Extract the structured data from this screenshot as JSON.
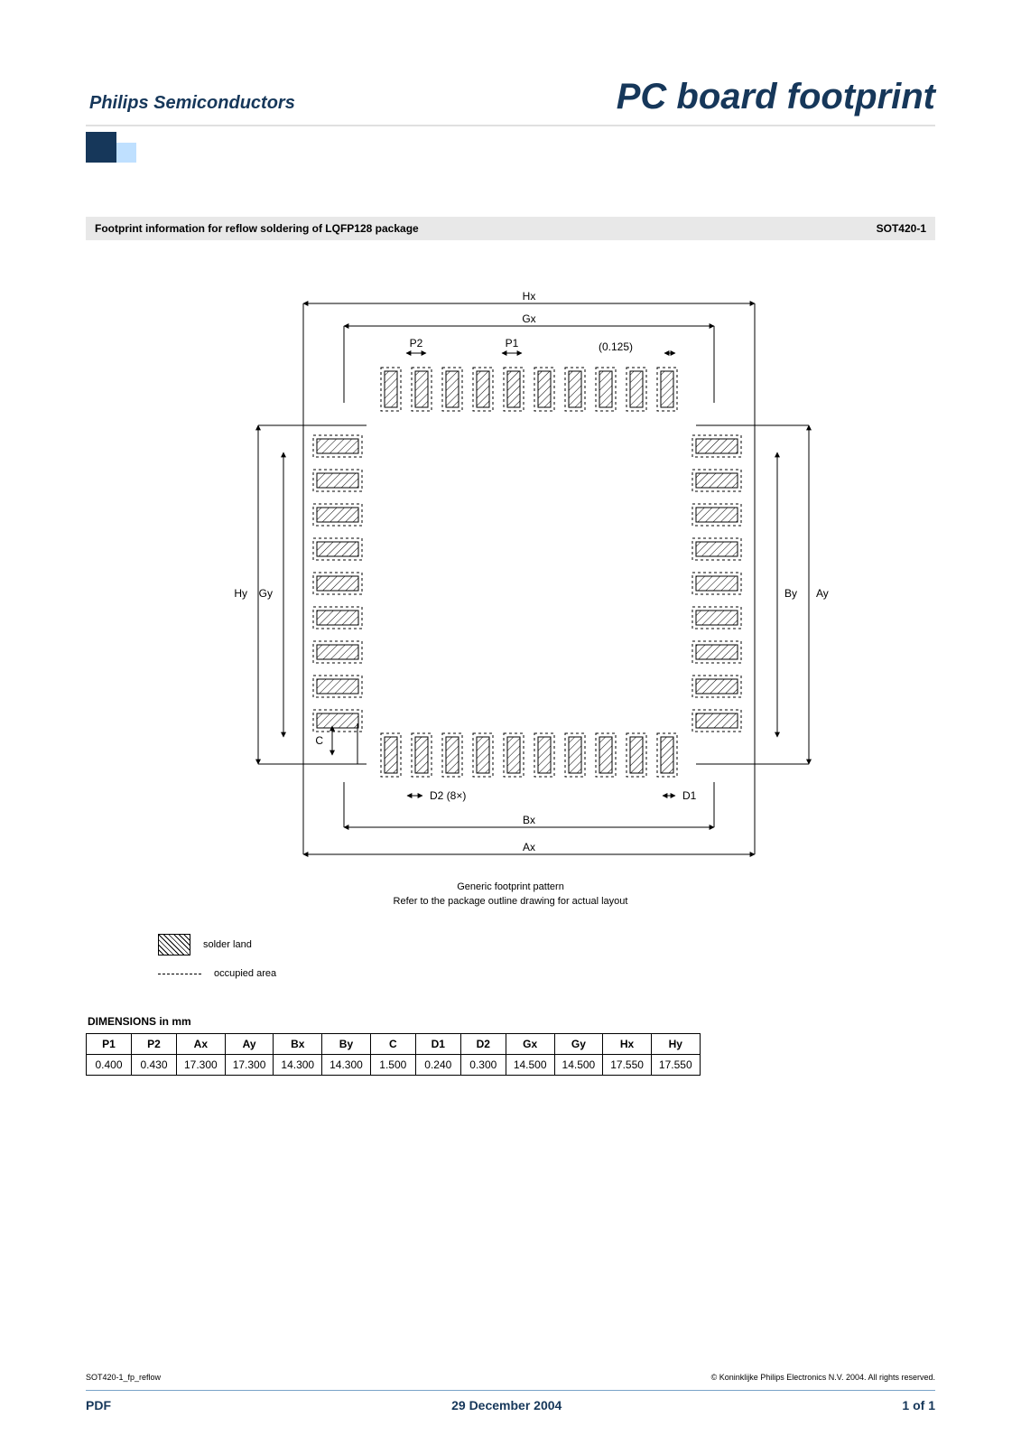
{
  "header": {
    "brand": "Philips Semiconductors",
    "doc_title": "PC board footprint"
  },
  "subhead": {
    "title": "Footprint information for reflow soldering of LQFP128 package",
    "code": "SOT420-1"
  },
  "diagram": {
    "note": "(0.125)",
    "d2_label": "D2 (8×)",
    "labels": {
      "Hx": "Hx",
      "Gx": "Gx",
      "P2": "P2",
      "P1": "P1",
      "Hy": "Hy",
      "Gy": "Gy",
      "By": "By",
      "Ay": "Ay",
      "C": "C",
      "D1": "D1",
      "Bx": "Bx",
      "Ax": "Ax"
    },
    "caption1": "Generic footprint pattern",
    "caption2": "Refer to the package outline drawing for actual layout",
    "top_pads": 10,
    "side_pads": 9,
    "colors": {
      "stroke": "#000000",
      "hatch": "#000000",
      "bg": "#ffffff"
    }
  },
  "legend": {
    "solder": "solder land",
    "occupied": "occupied area"
  },
  "dimensions": {
    "title": "DIMENSIONS in mm",
    "columns": [
      "P1",
      "P2",
      "Ax",
      "Ay",
      "Bx",
      "By",
      "C",
      "D1",
      "D2",
      "Gx",
      "Gy",
      "Hx",
      "Hy"
    ],
    "values": [
      "0.400",
      "0.430",
      "17.300",
      "17.300",
      "14.300",
      "14.300",
      "1.500",
      "0.240",
      "0.300",
      "14.500",
      "14.500",
      "17.550",
      "17.550"
    ]
  },
  "footer": {
    "doc_id": "SOT420-1_fp_reflow",
    "copyright": "© Koninklijke Philips Electronics N.V. 2004. All rights reserved.",
    "left": "PDF",
    "center": "29 December 2004",
    "right": "1 of 1"
  }
}
